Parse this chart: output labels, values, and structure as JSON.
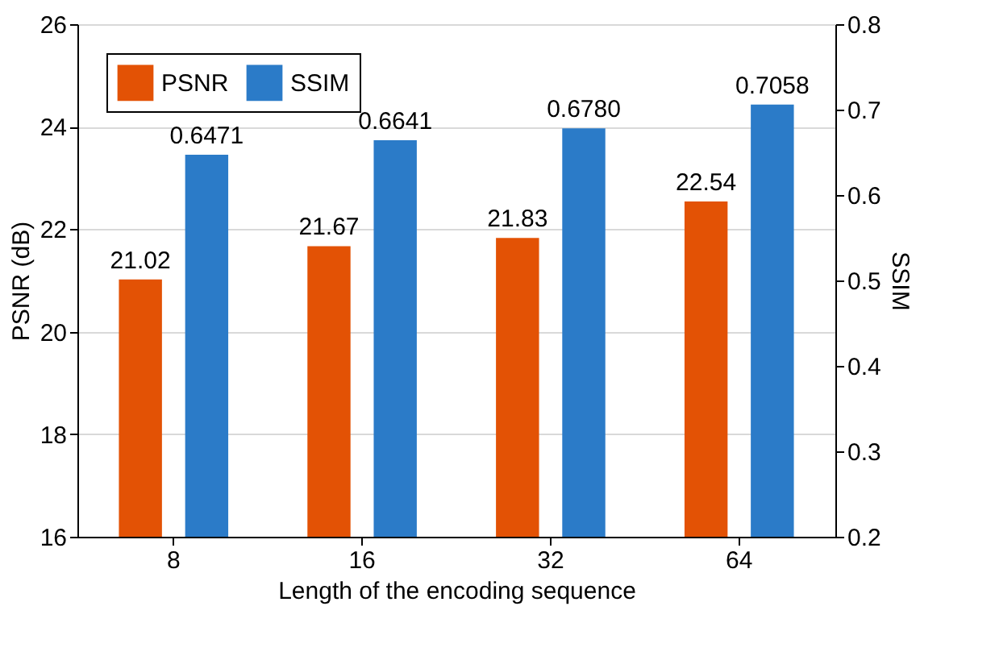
{
  "chart_data": {
    "type": "bar",
    "xlabel": "Length of the encoding sequence",
    "ylabel": "PSNR (dB)",
    "y2label": "SSIM",
    "categories": [
      "8",
      "16",
      "32",
      "64"
    ],
    "series": [
      {
        "name": "PSNR",
        "color": "#e35205",
        "values": [
          21.02,
          21.67,
          21.83,
          22.54
        ],
        "value_labels": [
          "21.02",
          "21.67",
          "21.83",
          "22.54"
        ]
      },
      {
        "name": "SSIM",
        "color": "#2b7bc8",
        "axis": "y2",
        "values": [
          0.6471,
          0.6641,
          0.678,
          0.7058
        ],
        "value_labels": [
          "0.6471",
          "0.6641",
          "0.6780",
          "0.7058"
        ]
      }
    ],
    "ylim": [
      16,
      26
    ],
    "yticks": [
      16,
      18,
      20,
      22,
      24,
      26
    ],
    "y2lim": [
      0.2,
      0.8
    ],
    "y2ticks": [
      0.2,
      0.3,
      0.4,
      0.5,
      0.6,
      0.7,
      0.8
    ],
    "grid": "y",
    "legend": "top left"
  }
}
